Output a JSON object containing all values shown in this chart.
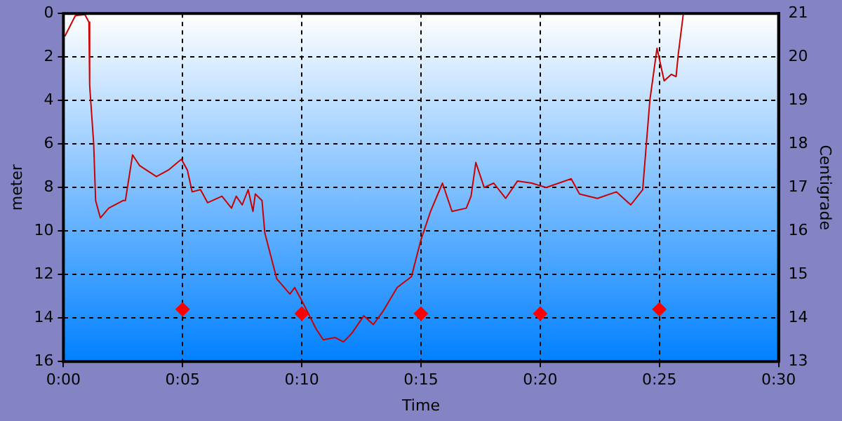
{
  "chart_data": {
    "type": "line",
    "xlabel": "Time",
    "ylabel": "meter",
    "y2label": "Centigrade",
    "grid": true,
    "xlim": [
      0,
      30
    ],
    "xticks": [
      {
        "value": 0,
        "label": "0:00"
      },
      {
        "value": 5,
        "label": "0:05"
      },
      {
        "value": 10,
        "label": "0:10"
      },
      {
        "value": 15,
        "label": "0:15"
      },
      {
        "value": 20,
        "label": "0:20"
      },
      {
        "value": 25,
        "label": "0:25"
      },
      {
        "value": 30,
        "label": "0:30"
      }
    ],
    "ylim": [
      16,
      0
    ],
    "yticks": [
      0,
      2,
      4,
      6,
      8,
      10,
      12,
      14,
      16
    ],
    "y2lim": [
      13,
      21
    ],
    "y2ticks": [
      13,
      14,
      15,
      16,
      17,
      18,
      19,
      20,
      21
    ],
    "series": [
      {
        "type": "line",
        "color": "#cc0000",
        "marker": "none",
        "line_style": "solid",
        "x": [
          0.06,
          0.5,
          0.9,
          1.07,
          1.1,
          1.27,
          1.35,
          1.55,
          1.9,
          2.5,
          2.6,
          2.9,
          3.2,
          3.9,
          4.4,
          4.95,
          5.2,
          5.4,
          5.75,
          6.05,
          6.65,
          7.05,
          7.25,
          7.5,
          7.75,
          7.95,
          8.05,
          8.33,
          8.45,
          8.95,
          9.5,
          9.7,
          10.0,
          10.6,
          10.9,
          11.4,
          11.75,
          12.1,
          12.6,
          13.0,
          13.4,
          14.0,
          14.6,
          15.0,
          15.4,
          15.9,
          16.3,
          16.9,
          17.1,
          17.3,
          17.65,
          18.05,
          18.55,
          19.05,
          19.65,
          20.25,
          21.3,
          21.65,
          22.4,
          23.2,
          23.8,
          24.3,
          24.6,
          24.9,
          25.2,
          25.5,
          25.7,
          25.8,
          26.0,
          26.05
        ],
        "values": [
          1.05,
          0.1,
          0.05,
          0.4,
          3.3,
          6.0,
          8.6,
          9.4,
          8.95,
          8.6,
          8.6,
          6.5,
          7.0,
          7.5,
          7.2,
          6.7,
          7.2,
          8.2,
          8.1,
          8.7,
          8.4,
          8.95,
          8.4,
          8.8,
          8.1,
          9.1,
          8.3,
          8.6,
          10.1,
          12.2,
          12.9,
          12.6,
          13.2,
          14.5,
          15.0,
          14.9,
          15.1,
          14.7,
          13.9,
          14.3,
          13.7,
          12.6,
          12.1,
          10.4,
          9.1,
          7.8,
          9.1,
          8.95,
          8.4,
          6.85,
          8.0,
          7.8,
          8.5,
          7.7,
          7.8,
          8.0,
          7.6,
          8.3,
          8.5,
          8.2,
          8.8,
          8.1,
          4.0,
          1.6,
          3.1,
          2.8,
          2.9,
          1.8,
          0.05,
          0
        ]
      },
      {
        "type": "scatter",
        "axis": "y2",
        "color": "#ff0000",
        "marker": "diamond",
        "x": [
          5,
          10,
          15,
          20,
          25
        ],
        "values": [
          14.2,
          14.1,
          14.1,
          14.1,
          14.2
        ]
      }
    ]
  }
}
